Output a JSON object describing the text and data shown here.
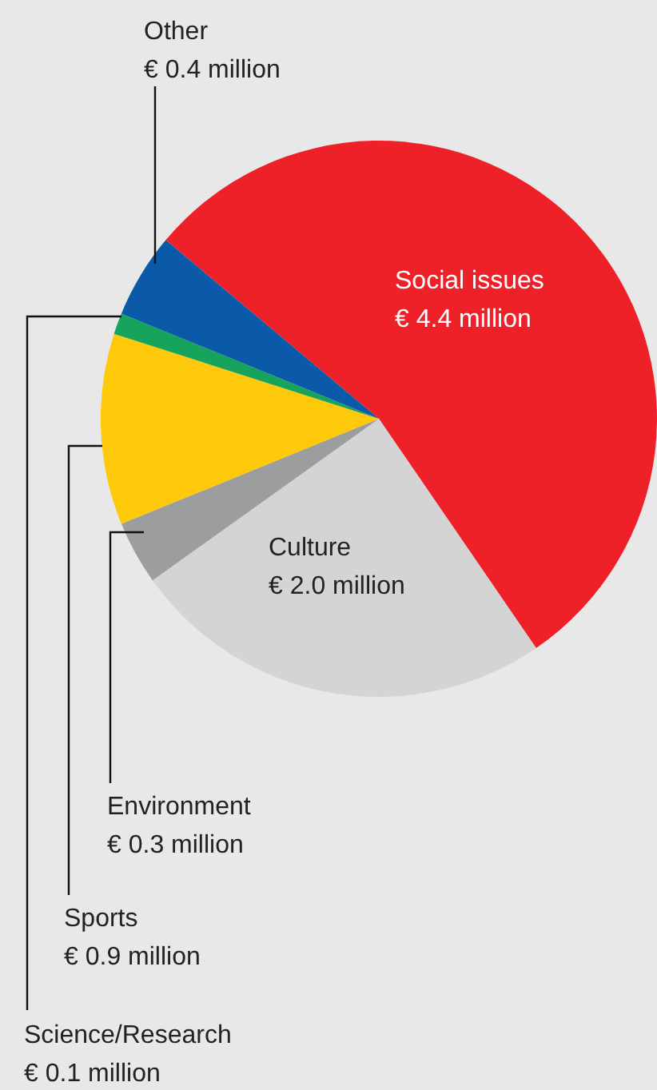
{
  "chart_data": {
    "type": "pie",
    "categories": [
      "Social issues",
      "Culture",
      "Environment",
      "Sports",
      "Science/Research",
      "Other"
    ],
    "values": [
      4.4,
      2.0,
      0.3,
      0.9,
      0.1,
      0.4
    ],
    "colors": [
      "#ee2129",
      "#d4d4d5",
      "#9c9d9f",
      "#ffc90b",
      "#16a35c",
      "#0b5aa9"
    ],
    "value_labels": [
      "€ 4.4 million",
      "€ 2.0 million",
      "€ 0.3 million",
      "€ 0.9 million",
      "€ 0.1 million",
      "€ 0.4 million"
    ]
  }
}
